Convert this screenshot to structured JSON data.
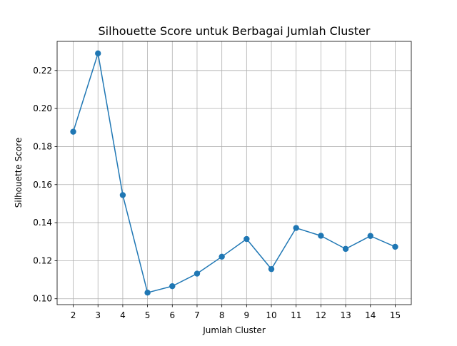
{
  "chart_data": {
    "type": "line",
    "title": "Silhouette Score untuk Berbagai Jumlah Cluster",
    "xlabel": "Jumlah Cluster",
    "ylabel": "Silhouette Score",
    "x": [
      2,
      3,
      4,
      5,
      6,
      7,
      8,
      9,
      10,
      11,
      12,
      13,
      14,
      15
    ],
    "series": [
      {
        "values": [
          0.1878,
          0.229,
          0.1545,
          0.1032,
          0.1066,
          0.1132,
          0.1221,
          0.1314,
          0.1156,
          0.1372,
          0.1331,
          0.1262,
          0.133,
          0.1273
        ],
        "color": "#1f77b4",
        "marker": "circle"
      }
    ],
    "xticks": [
      "2",
      "3",
      "4",
      "5",
      "6",
      "7",
      "8",
      "9",
      "10",
      "11",
      "12",
      "13",
      "14",
      "15"
    ],
    "yticks": [
      "0.10",
      "0.12",
      "0.14",
      "0.16",
      "0.18",
      "0.20",
      "0.22"
    ],
    "ytick_values": [
      0.1,
      0.12,
      0.14,
      0.16,
      0.18,
      0.2,
      0.22
    ],
    "xlim": [
      1.35,
      15.65
    ],
    "ylim": [
      0.0969,
      0.2353
    ],
    "grid": true,
    "legend": false
  }
}
